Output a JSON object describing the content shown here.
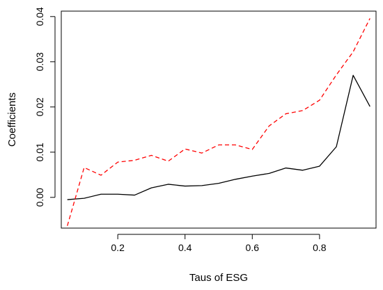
{
  "chart_data": {
    "type": "line",
    "title": "",
    "xlabel": "Taus of ESG",
    "ylabel": "Coefficients",
    "xlim": [
      0.032,
      0.968
    ],
    "ylim": [
      -0.0068,
      0.0412
    ],
    "x_ticks": [
      0.2,
      0.4,
      0.6,
      0.8
    ],
    "x_tick_labels": [
      "0.2",
      "0.4",
      "0.6",
      "0.8"
    ],
    "y_ticks": [
      0.0,
      0.01,
      0.02,
      0.03,
      0.04
    ],
    "y_tick_labels": [
      "0.00",
      "0.01",
      "0.02",
      "0.03",
      "0.04"
    ],
    "grid": false,
    "x": [
      0.05,
      0.1,
      0.15,
      0.2,
      0.25,
      0.3,
      0.35,
      0.4,
      0.45,
      0.5,
      0.55,
      0.6,
      0.65,
      0.7,
      0.75,
      0.8,
      0.85,
      0.9,
      0.95
    ],
    "series": [
      {
        "color": "#000000",
        "dash": "solid",
        "values": [
          -0.0005,
          -0.0002,
          0.0007,
          0.0007,
          0.0005,
          0.0021,
          0.0029,
          0.0025,
          0.0026,
          0.0031,
          0.004,
          0.0047,
          0.0053,
          0.0065,
          0.006,
          0.0069,
          0.0112,
          0.027,
          0.0201
        ]
      },
      {
        "color": "#ff0000",
        "dash": "dashed",
        "values": [
          -0.0063,
          0.0066,
          0.0049,
          0.0078,
          0.0082,
          0.0093,
          0.008,
          0.0107,
          0.0098,
          0.0116,
          0.0116,
          0.0106,
          0.0158,
          0.0185,
          0.0192,
          0.0215,
          0.0271,
          0.0322,
          0.0396
        ]
      }
    ]
  }
}
